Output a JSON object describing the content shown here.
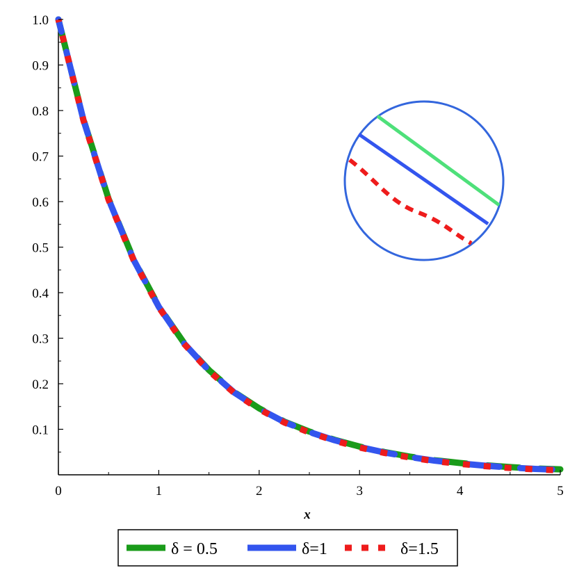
{
  "chart_data": {
    "type": "line",
    "xlabel": "x",
    "ylabel": "",
    "xlim": [
      0,
      5
    ],
    "ylim": [
      0,
      1.0
    ],
    "x_ticks": [
      "0",
      "1",
      "2",
      "3",
      "4",
      "5"
    ],
    "y_ticks": [
      "0.1",
      "0.2",
      "0.3",
      "0.4",
      "0.5",
      "0.6",
      "0.7",
      "0.8",
      "0.9",
      "1.0"
    ],
    "x": [
      0,
      0.25,
      0.5,
      0.75,
      1.0,
      1.25,
      1.5,
      1.75,
      2.0,
      2.25,
      2.5,
      2.75,
      3.0,
      3.25,
      3.5,
      3.75,
      4.0,
      4.25,
      4.5,
      4.75,
      5.0
    ],
    "series": [
      {
        "name": "δ = 0.5",
        "color": "#1a9b1a",
        "style": "dashed",
        "values": [
          1.0,
          0.78,
          0.606,
          0.473,
          0.37,
          0.29,
          0.23,
          0.182,
          0.146,
          0.117,
          0.095,
          0.077,
          0.062,
          0.05,
          0.04,
          0.032,
          0.026,
          0.021,
          0.017,
          0.014,
          0.012
        ]
      },
      {
        "name": "δ=1",
        "color": "#3355ee",
        "style": "dashed",
        "values": [
          1.0,
          0.779,
          0.605,
          0.472,
          0.369,
          0.289,
          0.229,
          0.181,
          0.145,
          0.116,
          0.094,
          0.076,
          0.061,
          0.049,
          0.039,
          0.031,
          0.025,
          0.02,
          0.016,
          0.013,
          0.011
        ]
      },
      {
        "name": "δ=1.5",
        "color": "#ee1c1c",
        "style": "dotted",
        "values": [
          1.0,
          0.778,
          0.604,
          0.471,
          0.368,
          0.288,
          0.228,
          0.18,
          0.144,
          0.115,
          0.093,
          0.075,
          0.06,
          0.048,
          0.038,
          0.03,
          0.024,
          0.019,
          0.015,
          0.012,
          0.01
        ]
      }
    ],
    "legend_position": "bottom",
    "grid": false,
    "inset": {
      "kind": "magnified-view",
      "shape": "circle",
      "border_color": "#3366dd"
    }
  }
}
